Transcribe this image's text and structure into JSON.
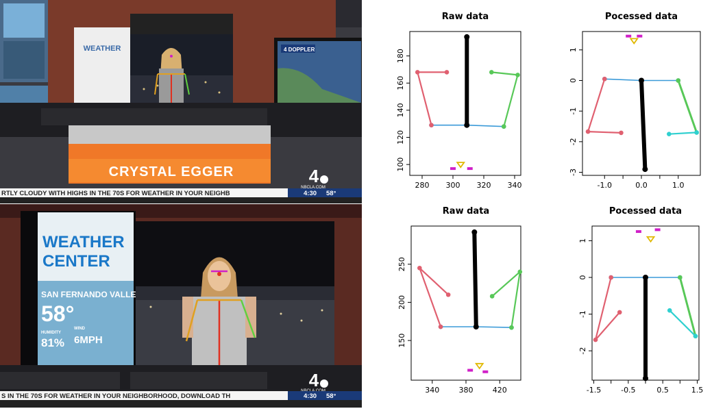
{
  "frames": [
    {
      "lower_third_name": "CRYSTAL EGGER",
      "ticker": "RTLY CLOUDY WITH HIGHS IN THE 70S   FOR WEATHER IN YOUR NEIGHB",
      "time": "4:30",
      "temp": "58°",
      "logo_site": "NBCLA.COM",
      "logo_number": "4",
      "screen_text": "WEATHER",
      "doppler_text": "4  DOPPLER"
    },
    {
      "panel_title_line1": "WEATHER",
      "panel_title_line2": "CENTER",
      "location": "SAN FERNANDO VALLEY",
      "temperature": "58°",
      "humidity_label": "HUMIDITY",
      "humidity_value": "81%",
      "wind_label": "WIND",
      "wind_value": "6MPH",
      "ticker": "S IN THE 70S   FOR WEATHER IN YOUR NEIGHBORHOOD, DOWNLOAD TH",
      "time": "4:30",
      "temp": "58°",
      "logo_site": "NBCLA.COM",
      "logo_number": "4"
    }
  ],
  "colors": {
    "left_arm": "#e06070",
    "right_arm": "#58c858",
    "right_arm_alt": "#30d0d0",
    "shoulders": "#3a9ad8",
    "torso": "#000000",
    "nose": "#e0b800",
    "eyes": "#d020c8"
  },
  "chart_data": [
    {
      "type": "scatter",
      "title": "Raw data",
      "xlim": [
        272,
        344
      ],
      "ylim": [
        92,
        198
      ],
      "xticks": [
        280,
        300,
        320,
        340
      ],
      "yticks": [
        100,
        120,
        140,
        160,
        180
      ],
      "skeleton": {
        "torso": [
          [
            309,
            194
          ],
          [
            309,
            129
          ]
        ],
        "shoulders": [
          [
            286,
            129
          ],
          [
            309,
            129
          ],
          [
            333,
            128
          ]
        ],
        "left_arm": [
          [
            286,
            129
          ],
          [
            277,
            168
          ],
          [
            296,
            168
          ]
        ],
        "right_arm": [
          [
            333,
            128
          ],
          [
            342,
            166
          ],
          [
            325,
            168
          ]
        ],
        "nose": [
          305,
          100
        ],
        "eyes": [
          [
            300,
            97
          ],
          [
            311,
            97
          ]
        ]
      }
    },
    {
      "type": "scatter",
      "title": "Pocessed data",
      "xlim": [
        -1.6,
        1.6
      ],
      "ylim": [
        -3.1,
        1.6
      ],
      "xticks": [
        -1.0,
        -0.5,
        0.0,
        0.5,
        1.0
      ],
      "xtick_labels": [
        "-1.0",
        "",
        "0.0",
        "",
        "1.0"
      ],
      "yticks": [
        -3,
        -2,
        -1,
        0,
        1
      ],
      "skeleton": {
        "torso": [
          [
            0.0,
            0.0
          ],
          [
            0.1,
            -2.9
          ]
        ],
        "shoulders": [
          [
            -1.0,
            0.05
          ],
          [
            0.0,
            0.0
          ],
          [
            1.0,
            0.0
          ]
        ],
        "left_arm": [
          [
            -1.0,
            0.05
          ],
          [
            -1.45,
            -1.67
          ],
          [
            -0.55,
            -1.71
          ]
        ],
        "right_arm_upper": [
          [
            1.0,
            0.0
          ],
          [
            1.5,
            -1.7
          ]
        ],
        "right_arm_lower": [
          [
            1.5,
            -1.7
          ],
          [
            0.75,
            -1.75
          ]
        ],
        "nose": [
          -0.2,
          1.3
        ],
        "eyes": [
          [
            -0.35,
            1.45
          ],
          [
            -0.05,
            1.45
          ]
        ]
      }
    },
    {
      "type": "scatter",
      "title": "Raw data",
      "xlim": [
        315,
        445
      ],
      "ylim": [
        98,
        300
      ],
      "xticks": [
        340,
        380,
        420
      ],
      "yticks": [
        150,
        200,
        250
      ],
      "skeleton": {
        "torso": [
          [
            390,
            292
          ],
          [
            392,
            168
          ]
        ],
        "shoulders": [
          [
            350,
            168
          ],
          [
            392,
            168
          ],
          [
            434,
            167
          ]
        ],
        "left_arm": [
          [
            350,
            168
          ],
          [
            325,
            245
          ],
          [
            359,
            210
          ]
        ],
        "right_arm": [
          [
            434,
            167
          ],
          [
            444,
            240
          ],
          [
            411,
            208
          ]
        ],
        "nose": [
          396,
          117
        ],
        "eyes": [
          [
            385,
            111
          ],
          [
            403,
            109
          ]
        ]
      }
    },
    {
      "type": "scatter",
      "title": "Pocessed data",
      "xlim": [
        -1.55,
        1.55
      ],
      "ylim": [
        -2.8,
        1.4
      ],
      "xticks": [
        -1.5,
        -1.0,
        -0.5,
        0.0,
        0.5,
        1.0,
        1.5
      ],
      "xtick_labels": [
        "-1.5",
        "",
        "-0.5",
        "",
        "0.5",
        "",
        "1.5"
      ],
      "yticks": [
        -2,
        -1,
        0,
        1
      ],
      "skeleton": {
        "torso": [
          [
            0.0,
            0.0
          ],
          [
            0.0,
            -2.75
          ]
        ],
        "shoulders": [
          [
            -1.0,
            0.0
          ],
          [
            0.0,
            0.0
          ],
          [
            1.0,
            0.0
          ]
        ],
        "left_arm": [
          [
            -1.0,
            0.0
          ],
          [
            -1.45,
            -1.7
          ],
          [
            -0.75,
            -0.95
          ]
        ],
        "right_arm_upper": [
          [
            1.0,
            0.0
          ],
          [
            1.45,
            -1.6
          ]
        ],
        "right_arm_lower": [
          [
            1.45,
            -1.6
          ],
          [
            0.7,
            -0.9
          ]
        ],
        "nose": [
          0.15,
          1.05
        ],
        "eyes": [
          [
            -0.2,
            1.25
          ],
          [
            0.35,
            1.3
          ]
        ]
      }
    }
  ]
}
